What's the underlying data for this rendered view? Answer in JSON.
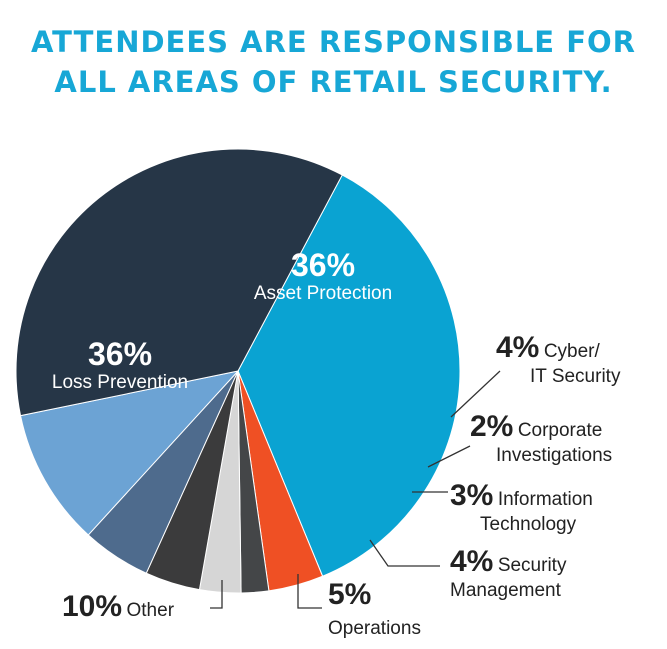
{
  "title": {
    "line1": "ATTENDEES ARE RESPONSIBLE FOR",
    "line2": "ALL AREAS OF RETAIL SECURITY."
  },
  "chart_data": {
    "type": "pie",
    "slices": [
      {
        "pct": "36%",
        "label": "Asset Protection",
        "value": 36,
        "color": "#0aa3d2"
      },
      {
        "pct": "4%",
        "label": "Cyber/ IT Security",
        "value": 4,
        "color": "#ef5024"
      },
      {
        "pct": "2%",
        "label": "Corporate Investigations",
        "value": 2,
        "color": "#444648"
      },
      {
        "pct": "3%",
        "label": "Information Technology",
        "value": 3,
        "color": "#d6d6d6"
      },
      {
        "pct": "4%",
        "label": "Security Management",
        "value": 4,
        "color": "#3b3b3c"
      },
      {
        "pct": "5%",
        "label": "Operations",
        "value": 5,
        "color": "#4e6b8d"
      },
      {
        "pct": "10%",
        "label": "Other",
        "value": 10,
        "color": "#6ca3d4"
      },
      {
        "pct": "36%",
        "label": "Loss Prevention",
        "value": 36,
        "color": "#263647"
      }
    ]
  }
}
